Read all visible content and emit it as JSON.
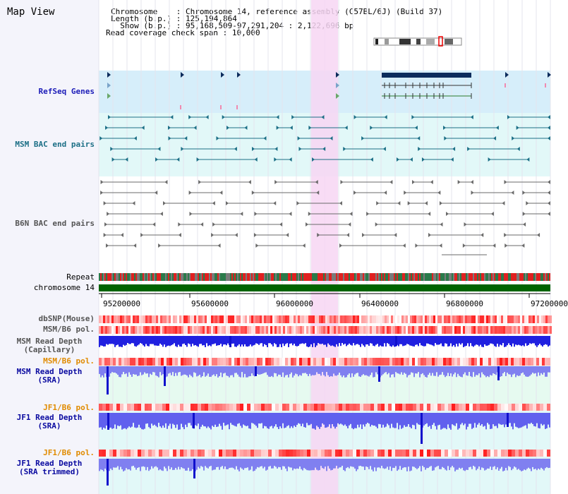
{
  "window": {
    "title": "Map View"
  },
  "header": {
    "chromosome_key": "Chromosome",
    "chromosome_val": "Chromosome 14, reference assembly (C57BL/6J) (Build 37)",
    "length_key": "Length (b.p.)",
    "length_val": "125,194,864",
    "show_key": "Show (b.p.)",
    "show_val": "95,168,509-97,291,204 : 2,122,696 bp",
    "read_key": "Read coverage check span",
    "read_val": "10,000"
  },
  "tracks": {
    "refseq": "RefSeq Genes",
    "msm_bac": "MSM BAC end pairs",
    "b6n_bac": "B6N BAC end pairs",
    "repeat": "Repeat",
    "chromosome": "chromosome 14",
    "dbsnp": "dbSNP(Mouse)",
    "msm_b6_pol": "MSM/B6 pol.",
    "msm_depth_cap_1": "MSM Read Depth",
    "msm_depth_cap_2": "(Capillary)",
    "msm_b6_pol_2": "MSM/B6 pol.",
    "msm_depth_sra_1": "MSM Read Depth",
    "msm_depth_sra_2": "(SRA)",
    "jf1_b6_pol": "JF1/B6 pol.",
    "jf1_depth_sra_1": "JF1 Read Depth",
    "jf1_depth_sra_2": "(SRA)",
    "jf1_b6_pol_2": "JF1/B6 pol.",
    "jf1_depth_trim_1": "JF1 Read Depth",
    "jf1_depth_trim_2": "(SRA trimmed)"
  },
  "axis": {
    "ticks": [
      "95200000",
      "95600000",
      "96000000",
      "96400000",
      "96800000",
      "97200000"
    ]
  },
  "colors": {
    "highlight": "#f7d6f3",
    "refseq_bg": "#d6eefa",
    "msm_bg": "#e2f8f8",
    "gene": "#0c2c5c",
    "chromosome_bar": "#006400"
  }
}
